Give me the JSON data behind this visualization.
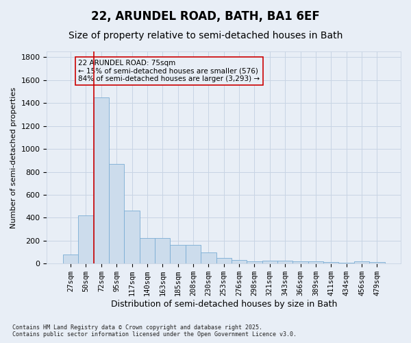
{
  "title": "22, ARUNDEL ROAD, BATH, BA1 6EF",
  "subtitle": "Size of property relative to semi-detached houses in Bath",
  "xlabel": "Distribution of semi-detached houses by size in Bath",
  "ylabel": "Number of semi-detached properties",
  "categories": [
    "27sqm",
    "50sqm",
    "72sqm",
    "95sqm",
    "117sqm",
    "140sqm",
    "163sqm",
    "185sqm",
    "208sqm",
    "230sqm",
    "253sqm",
    "276sqm",
    "298sqm",
    "321sqm",
    "343sqm",
    "366sqm",
    "389sqm",
    "411sqm",
    "434sqm",
    "456sqm",
    "479sqm"
  ],
  "values": [
    80,
    420,
    1450,
    870,
    460,
    220,
    220,
    160,
    160,
    100,
    50,
    30,
    20,
    25,
    25,
    18,
    18,
    15,
    10,
    18,
    12
  ],
  "bar_color": "#ccdcec",
  "bar_edge_color": "#7aadd4",
  "grid_color": "#c8d4e4",
  "background_color": "#e8eef6",
  "vline_x": 1.5,
  "vline_color": "#cc0000",
  "annotation_text": "22 ARUNDEL ROAD: 75sqm\n← 15% of semi-detached houses are smaller (576)\n84% of semi-detached houses are larger (3,293) →",
  "box_edge_color": "#cc0000",
  "footnote": "Contains HM Land Registry data © Crown copyright and database right 2025.\nContains public sector information licensed under the Open Government Licence v3.0.",
  "ylim": [
    0,
    1850
  ],
  "yticks": [
    0,
    200,
    400,
    600,
    800,
    1000,
    1200,
    1400,
    1600,
    1800
  ],
  "title_fontsize": 12,
  "subtitle_fontsize": 10,
  "tick_fontsize": 7.5,
  "ylabel_fontsize": 8,
  "xlabel_fontsize": 9,
  "annot_fontsize": 7.5
}
